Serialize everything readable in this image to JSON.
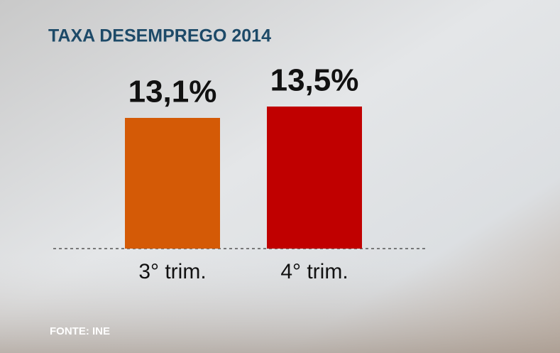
{
  "chart_data": {
    "type": "bar",
    "title": "TAXA DESEMPREGO 2014",
    "categories": [
      "3° trim.",
      "4° trim."
    ],
    "series": [
      {
        "name": null,
        "values": [
          13.1,
          13.5
        ],
        "value_labels": [
          "13,1%",
          "13,5%"
        ],
        "colors": [
          "#d45a06",
          "#c00000"
        ]
      }
    ],
    "ylim": [
      8.5,
      14
    ],
    "source": "FONTE: INE"
  }
}
